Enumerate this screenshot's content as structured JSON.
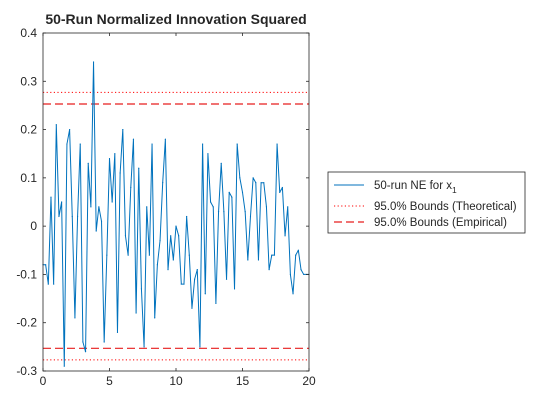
{
  "chart_data": {
    "type": "line",
    "title": "50-Run Normalized Innovation Squared",
    "xlabel": "",
    "ylabel": "",
    "xlim": [
      0,
      20
    ],
    "ylim": [
      -0.3,
      0.4
    ],
    "xticks": [
      "0",
      "5",
      "10",
      "15",
      "20"
    ],
    "yticks": [
      "-0.3",
      "-0.2",
      "-0.1",
      "0",
      "0.1",
      "0.2",
      "0.3",
      "0.4"
    ],
    "grid": false,
    "legend_position": "right, outside",
    "colors": {
      "series": "#0072BD",
      "theoretical": "#FF0000",
      "empirical": "#E81E1E",
      "axes": "#262626"
    },
    "series": [
      {
        "name": "50-run NE for x",
        "name_subscript": "1",
        "x": [
          0,
          0.2,
          0.4,
          0.6,
          0.8,
          1.0,
          1.2,
          1.4,
          1.6,
          1.8,
          2.0,
          2.2,
          2.4,
          2.6,
          2.8,
          3.0,
          3.2,
          3.4,
          3.6,
          3.8,
          4.0,
          4.2,
          4.4,
          4.6,
          4.8,
          5.0,
          5.2,
          5.4,
          5.6,
          5.8,
          6.0,
          6.2,
          6.4,
          6.6,
          6.8,
          7.0,
          7.2,
          7.4,
          7.6,
          7.8,
          8.0,
          8.2,
          8.4,
          8.6,
          8.8,
          9.0,
          9.2,
          9.4,
          9.6,
          9.8,
          10.0,
          10.2,
          10.4,
          10.6,
          10.8,
          11.0,
          11.2,
          11.4,
          11.6,
          11.8,
          12.0,
          12.2,
          12.4,
          12.6,
          12.8,
          13.0,
          13.2,
          13.4,
          13.6,
          13.8,
          14.0,
          14.2,
          14.4,
          14.6,
          14.8,
          15.0,
          15.2,
          15.4,
          15.6,
          15.8,
          16.0,
          16.2,
          16.4,
          16.6,
          16.8,
          17.0,
          17.2,
          17.4,
          17.6,
          17.8,
          18.0,
          18.2,
          18.4,
          18.6,
          18.8,
          19.0,
          19.2,
          19.4,
          19.6,
          19.8,
          20.0
        ],
        "values": [
          -0.08,
          -0.08,
          -0.12,
          0.06,
          -0.12,
          0.21,
          0.02,
          0.05,
          -0.29,
          0.17,
          0.2,
          0.02,
          -0.19,
          0.02,
          0.17,
          -0.24,
          -0.26,
          0.13,
          0.04,
          0.34,
          -0.01,
          0.04,
          0.01,
          -0.24,
          -0.06,
          0.14,
          0.05,
          0.15,
          -0.22,
          0.11,
          0.2,
          -0.02,
          -0.06,
          0.08,
          0.18,
          -0.18,
          0.12,
          -0.13,
          -0.25,
          0.04,
          -0.06,
          0.17,
          -0.19,
          -0.08,
          -0.03,
          0.09,
          0.18,
          -0.09,
          -0.02,
          -0.07,
          0.0,
          -0.02,
          -0.12,
          -0.12,
          0.02,
          -0.06,
          -0.17,
          -0.11,
          -0.09,
          -0.25,
          0.17,
          -0.14,
          0.15,
          0.05,
          0.04,
          -0.16,
          0.03,
          0.13,
          0.03,
          -0.11,
          0.07,
          0.06,
          -0.13,
          0.17,
          0.1,
          0.07,
          0.03,
          -0.07,
          0.02,
          0.1,
          0.09,
          -0.07,
          0.09,
          0.09,
          0.04,
          -0.09,
          -0.06,
          -0.06,
          0.17,
          0.07,
          0.08,
          -0.02,
          0.04,
          -0.1,
          -0.14,
          -0.06,
          -0.05,
          -0.09,
          -0.1,
          -0.1,
          -0.1
        ]
      }
    ],
    "reference_lines": [
      {
        "name": "95.0% Bounds (Theoretical)",
        "values": [
          0.277,
          -0.277
        ],
        "style": "dotted"
      },
      {
        "name": "95.0% Bounds (Empirical)",
        "values": [
          0.253,
          -0.253
        ],
        "style": "dashed"
      }
    ]
  }
}
